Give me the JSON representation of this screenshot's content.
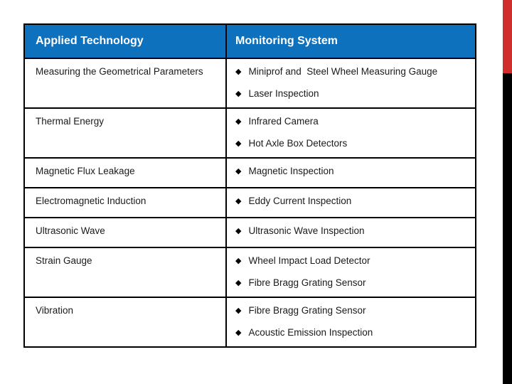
{
  "colors": {
    "header_bg": "#0d71bd",
    "header_text": "#ffffff",
    "body_text": "#1a1a1a",
    "border": "#000000",
    "edge_bar_red": "#d02d2d",
    "edge_bar_black": "#000000"
  },
  "table": {
    "bullet_glyph": "◆",
    "header": {
      "columns": [
        "Applied Technology",
        "Monitoring System"
      ]
    },
    "rows": [
      {
        "technology": "Measuring the Geometrical Parameters",
        "systems": [
          "Miniprof and  Steel Wheel Measuring Gauge",
          "Laser Inspection"
        ]
      },
      {
        "technology": "Thermal Energy",
        "systems": [
          "Infrared Camera",
          "Hot Axle Box Detectors"
        ]
      },
      {
        "technology": "Magnetic Flux Leakage",
        "systems": [
          "Magnetic Inspection"
        ]
      },
      {
        "technology": "Electromagnetic Induction",
        "systems": [
          "Eddy Current Inspection"
        ]
      },
      {
        "technology": "Ultrasonic Wave",
        "systems": [
          "Ultrasonic Wave Inspection"
        ]
      },
      {
        "technology": "Strain Gauge",
        "systems": [
          "Wheel Impact Load Detector",
          "Fibre Bragg Grating Sensor"
        ]
      },
      {
        "technology": "Vibration",
        "systems": [
          "Fibre Bragg Grating Sensor",
          "Acoustic Emission Inspection"
        ]
      }
    ]
  }
}
